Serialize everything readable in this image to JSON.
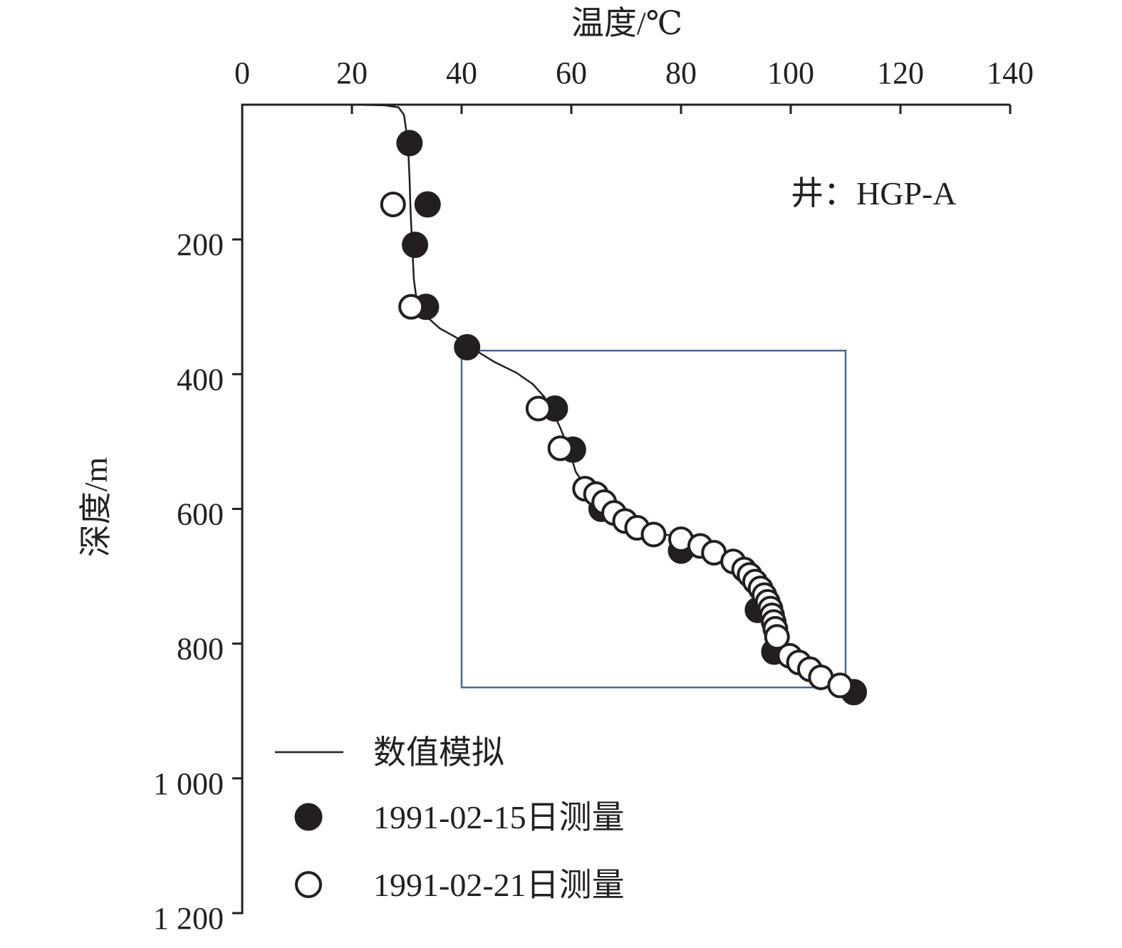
{
  "chart_data": {
    "type": "scatter",
    "x_axis": {
      "label": "温度/℃",
      "range": [
        0,
        140
      ],
      "ticks": [
        0,
        20,
        40,
        60,
        80,
        100,
        120,
        140
      ],
      "tick_labels": [
        "0",
        "20",
        "40",
        "60",
        "80",
        "100",
        "120",
        "140"
      ],
      "position": "top"
    },
    "y_axis": {
      "label": "深度/m",
      "range": [
        0,
        1200
      ],
      "inverted": true,
      "ticks": [
        200,
        400,
        600,
        800,
        1000,
        1200
      ],
      "tick_labels": [
        "200",
        "400",
        "600",
        "800",
        "1 000",
        "1 200"
      ]
    },
    "annotation": "井：HGP-A",
    "highlight_box": {
      "x": [
        40,
        110
      ],
      "y": [
        365,
        865
      ],
      "color": "#4a6890"
    },
    "legend_position": "bottom-left",
    "series": [
      {
        "name": "数值模拟",
        "kind": "line",
        "points": [
          [
            20,
            0
          ],
          [
            26,
            1
          ],
          [
            28.5,
            4
          ],
          [
            29.5,
            15
          ],
          [
            30.2,
            55
          ],
          [
            30.5,
            110
          ],
          [
            30.7,
            160
          ],
          [
            31,
            210
          ],
          [
            31.3,
            260
          ],
          [
            31.8,
            290
          ],
          [
            33,
            310
          ],
          [
            36,
            332
          ],
          [
            40,
            350
          ],
          [
            42,
            362
          ],
          [
            46,
            382
          ],
          [
            50,
            398
          ],
          [
            53,
            415
          ],
          [
            55,
            433
          ],
          [
            56.3,
            450
          ],
          [
            58,
            480
          ],
          [
            59.5,
            510
          ],
          [
            60.8,
            545
          ],
          [
            63,
            572
          ],
          [
            65,
            590
          ],
          [
            67,
            608
          ],
          [
            70,
            623
          ],
          [
            74,
            633
          ],
          [
            77,
            638
          ],
          [
            80,
            642
          ],
          [
            83,
            650
          ],
          [
            86,
            662
          ],
          [
            89,
            678
          ],
          [
            92,
            697
          ],
          [
            94,
            715
          ],
          [
            95.2,
            730
          ],
          [
            96,
            745
          ],
          [
            96.6,
            760
          ],
          [
            97,
            778
          ],
          [
            97.4,
            795
          ],
          [
            98,
            808
          ],
          [
            99.5,
            820
          ],
          [
            101.5,
            832
          ],
          [
            104,
            845
          ],
          [
            107,
            855
          ],
          [
            110,
            862
          ],
          [
            112,
            867
          ]
        ]
      },
      {
        "name": "1991-02-15日测量",
        "kind": "filled",
        "points": [
          [
            30.5,
            57
          ],
          [
            33.8,
            148
          ],
          [
            31.5,
            208
          ],
          [
            33.5,
            300
          ],
          [
            41,
            360
          ],
          [
            57,
            451
          ],
          [
            60.3,
            512
          ],
          [
            65.5,
            600
          ],
          [
            80,
            662
          ],
          [
            94,
            750
          ],
          [
            97,
            812
          ],
          [
            111.5,
            872
          ]
        ]
      },
      {
        "name": "1991-02-21日测量",
        "kind": "open",
        "points": [
          [
            27.5,
            148
          ],
          [
            30.8,
            300
          ],
          [
            54,
            451
          ],
          [
            58,
            510
          ],
          [
            62.5,
            570
          ],
          [
            64.5,
            578
          ],
          [
            66,
            590
          ],
          [
            67.8,
            606
          ],
          [
            69.8,
            618
          ],
          [
            72,
            628
          ],
          [
            75,
            638
          ],
          [
            80,
            645
          ],
          [
            83.5,
            655
          ],
          [
            86,
            665
          ],
          [
            89.5,
            678
          ],
          [
            91.5,
            690
          ],
          [
            92.5,
            698
          ],
          [
            93.5,
            708
          ],
          [
            94.5,
            718
          ],
          [
            95.2,
            728
          ],
          [
            95.8,
            738
          ],
          [
            96.3,
            748
          ],
          [
            96.6,
            758
          ],
          [
            96.9,
            768
          ],
          [
            97.2,
            778
          ],
          [
            97.5,
            790
          ],
          [
            99.8,
            818
          ],
          [
            101.5,
            828
          ],
          [
            103.5,
            838
          ],
          [
            105.5,
            850
          ],
          [
            109,
            862
          ]
        ]
      }
    ]
  }
}
